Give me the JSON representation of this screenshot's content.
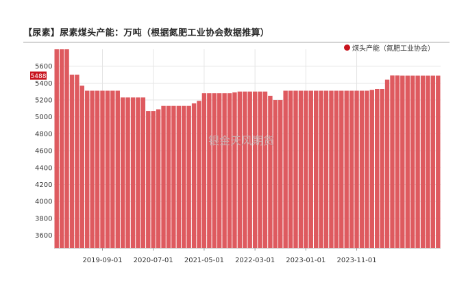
{
  "header": {
    "title": "【尿素】尿素煤头产能：万吨（根据氮肥工业协会数据推算）"
  },
  "watermark": "银金天风期货",
  "chart_data": {
    "type": "bar",
    "series": [
      {
        "name": "煤头产能（氮肥工业协会）",
        "color": "#de5a5f",
        "values": [
          5800,
          5800,
          5800,
          5500,
          5500,
          5370,
          5310,
          5310,
          5310,
          5310,
          5310,
          5310,
          5310,
          5230,
          5230,
          5230,
          5230,
          5230,
          5070,
          5070,
          5090,
          5130,
          5130,
          5130,
          5130,
          5130,
          5130,
          5160,
          5190,
          5280,
          5280,
          5280,
          5280,
          5280,
          5280,
          5290,
          5300,
          5300,
          5300,
          5300,
          5300,
          5300,
          5250,
          5200,
          5200,
          5310,
          5310,
          5310,
          5310,
          5310,
          5310,
          5310,
          5310,
          5310,
          5310,
          5310,
          5310,
          5310,
          5310,
          5310,
          5310,
          5310,
          5320,
          5330,
          5330,
          5440,
          5490,
          5490,
          5488,
          5488,
          5488,
          5488,
          5488,
          5488,
          5488,
          5488
        ]
      }
    ],
    "x_tick_labels": [
      {
        "label": "2019-09-01",
        "index": 9
      },
      {
        "label": "2020-07-01",
        "index": 19
      },
      {
        "label": "2021-05-01",
        "index": 29
      },
      {
        "label": "2022-03-01",
        "index": 39
      },
      {
        "label": "2023-01-01",
        "index": 49
      },
      {
        "label": "2023-11-01",
        "index": 59
      }
    ],
    "y_ticks": [
      3600,
      3800,
      4000,
      4200,
      4400,
      4600,
      4800,
      5000,
      5200,
      5400,
      5600
    ],
    "ylim": [
      3450,
      5800
    ],
    "last_value_label": "5488",
    "grid": true,
    "legend_position": "top-right"
  }
}
